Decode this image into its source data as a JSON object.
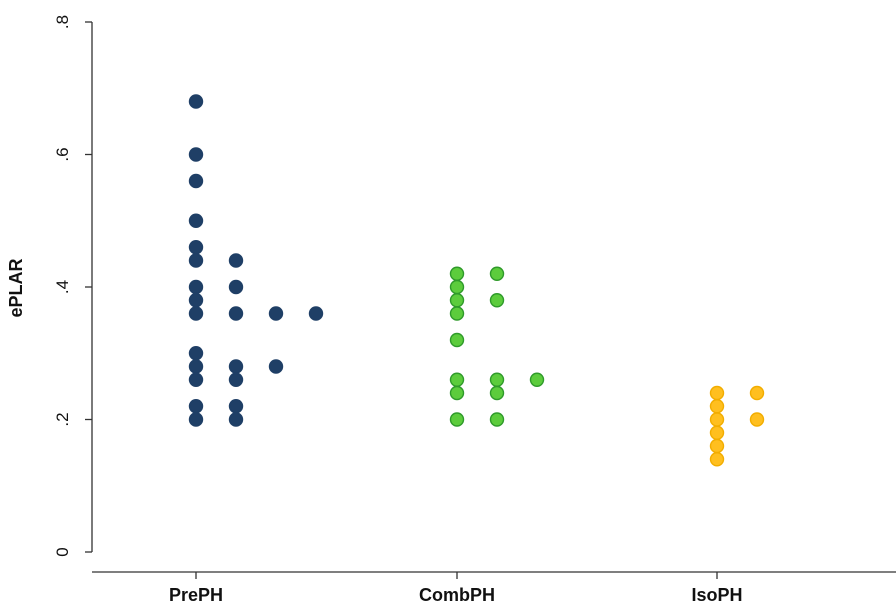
{
  "chart_data": {
    "type": "scatter",
    "title": "",
    "xlabel": "",
    "ylabel": "ePLAR",
    "ylim": [
      0,
      0.8
    ],
    "yticks": [
      {
        "value": 0,
        "label": "0"
      },
      {
        "value": 0.2,
        "label": ".2"
      },
      {
        "value": 0.4,
        "label": ".4"
      },
      {
        "value": 0.6,
        "label": ".6"
      },
      {
        "value": 0.8,
        "label": ".8"
      }
    ],
    "categories": [
      "PrePH",
      "CombPH",
      "IsoPH"
    ],
    "grid": false,
    "legend": "none",
    "series": [
      {
        "category": "PrePH",
        "color": "#1f3f66",
        "stroke": "#1f3f66",
        "values": [
          0.68,
          0.6,
          0.56,
          0.5,
          0.46,
          0.44,
          0.44,
          0.4,
          0.4,
          0.38,
          0.36,
          0.36,
          0.36,
          0.36,
          0.3,
          0.28,
          0.28,
          0.28,
          0.26,
          0.26,
          0.22,
          0.22,
          0.2,
          0.2
        ]
      },
      {
        "category": "CombPH",
        "color": "#5ccc3c",
        "stroke": "#2f9a2a",
        "values": [
          0.42,
          0.42,
          0.4,
          0.38,
          0.38,
          0.36,
          0.32,
          0.26,
          0.26,
          0.26,
          0.24,
          0.24,
          0.2,
          0.2
        ]
      },
      {
        "category": "IsoPH",
        "color": "#ffbf1f",
        "stroke": "#f2ad00",
        "values": [
          0.24,
          0.24,
          0.22,
          0.2,
          0.2,
          0.18,
          0.16,
          0.14
        ]
      }
    ]
  }
}
